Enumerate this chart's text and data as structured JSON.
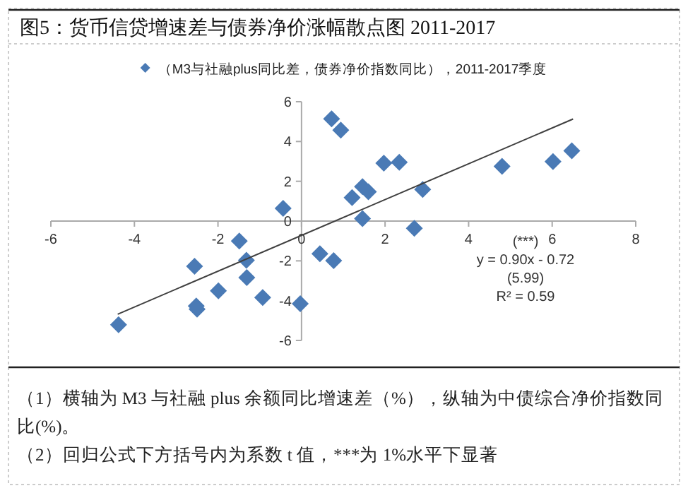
{
  "chart_data": {
    "type": "scatter",
    "title": "图5：货币信贷增速差与债券净价涨幅散点图 2011-2017",
    "series": [
      {
        "name": "（M3与社融plus同比差，债券净价指数同比），2011-2017季度",
        "color": "#4a7ab5",
        "marker": "diamond",
        "x": [
          0.72,
          0.94,
          1.46,
          1.6,
          1.21,
          1.46,
          -0.44,
          -1.49,
          -1.32,
          -1.31,
          -2.56,
          -2.52,
          -2.5,
          -1.99,
          -0.93,
          -0.03,
          0.44,
          0.77,
          -4.38,
          1.97,
          2.34,
          2.9,
          2.7,
          4.8,
          6.02,
          6.47
        ],
        "values": [
          5.14,
          4.57,
          1.73,
          1.47,
          1.18,
          0.12,
          0.64,
          -1.0,
          -1.97,
          -2.84,
          -2.27,
          -4.27,
          -4.43,
          -3.51,
          -3.84,
          -4.15,
          -1.64,
          -1.99,
          -5.21,
          2.91,
          2.96,
          1.59,
          -0.36,
          2.75,
          2.99,
          3.53
        ]
      },
      {
        "type": "line",
        "color": "#404040",
        "marker": "none",
        "x": [
          -4.4,
          6.5
        ],
        "values": [
          -4.68,
          5.13
        ]
      }
    ],
    "xlim": [
      -6,
      8
    ],
    "ylim": [
      -6,
      6
    ],
    "xticks": [
      -6,
      -4,
      -2,
      0,
      2,
      4,
      6,
      8
    ],
    "yticks": [
      -6,
      -4,
      -2,
      0,
      2,
      4,
      6
    ],
    "legend": "top",
    "grid": false,
    "annotations": [
      "(***)\ny = 0.90x - 0.72\n(5.99)\nR² = 0.59",
      "（1）横轴为 M3 与社融 plus 余额同比增速差（%），纵轴为中债综合净价指数同比(%)。",
      "（2）回归公式下方括号内为系数 t 值，***为 1%水平下显著"
    ]
  }
}
